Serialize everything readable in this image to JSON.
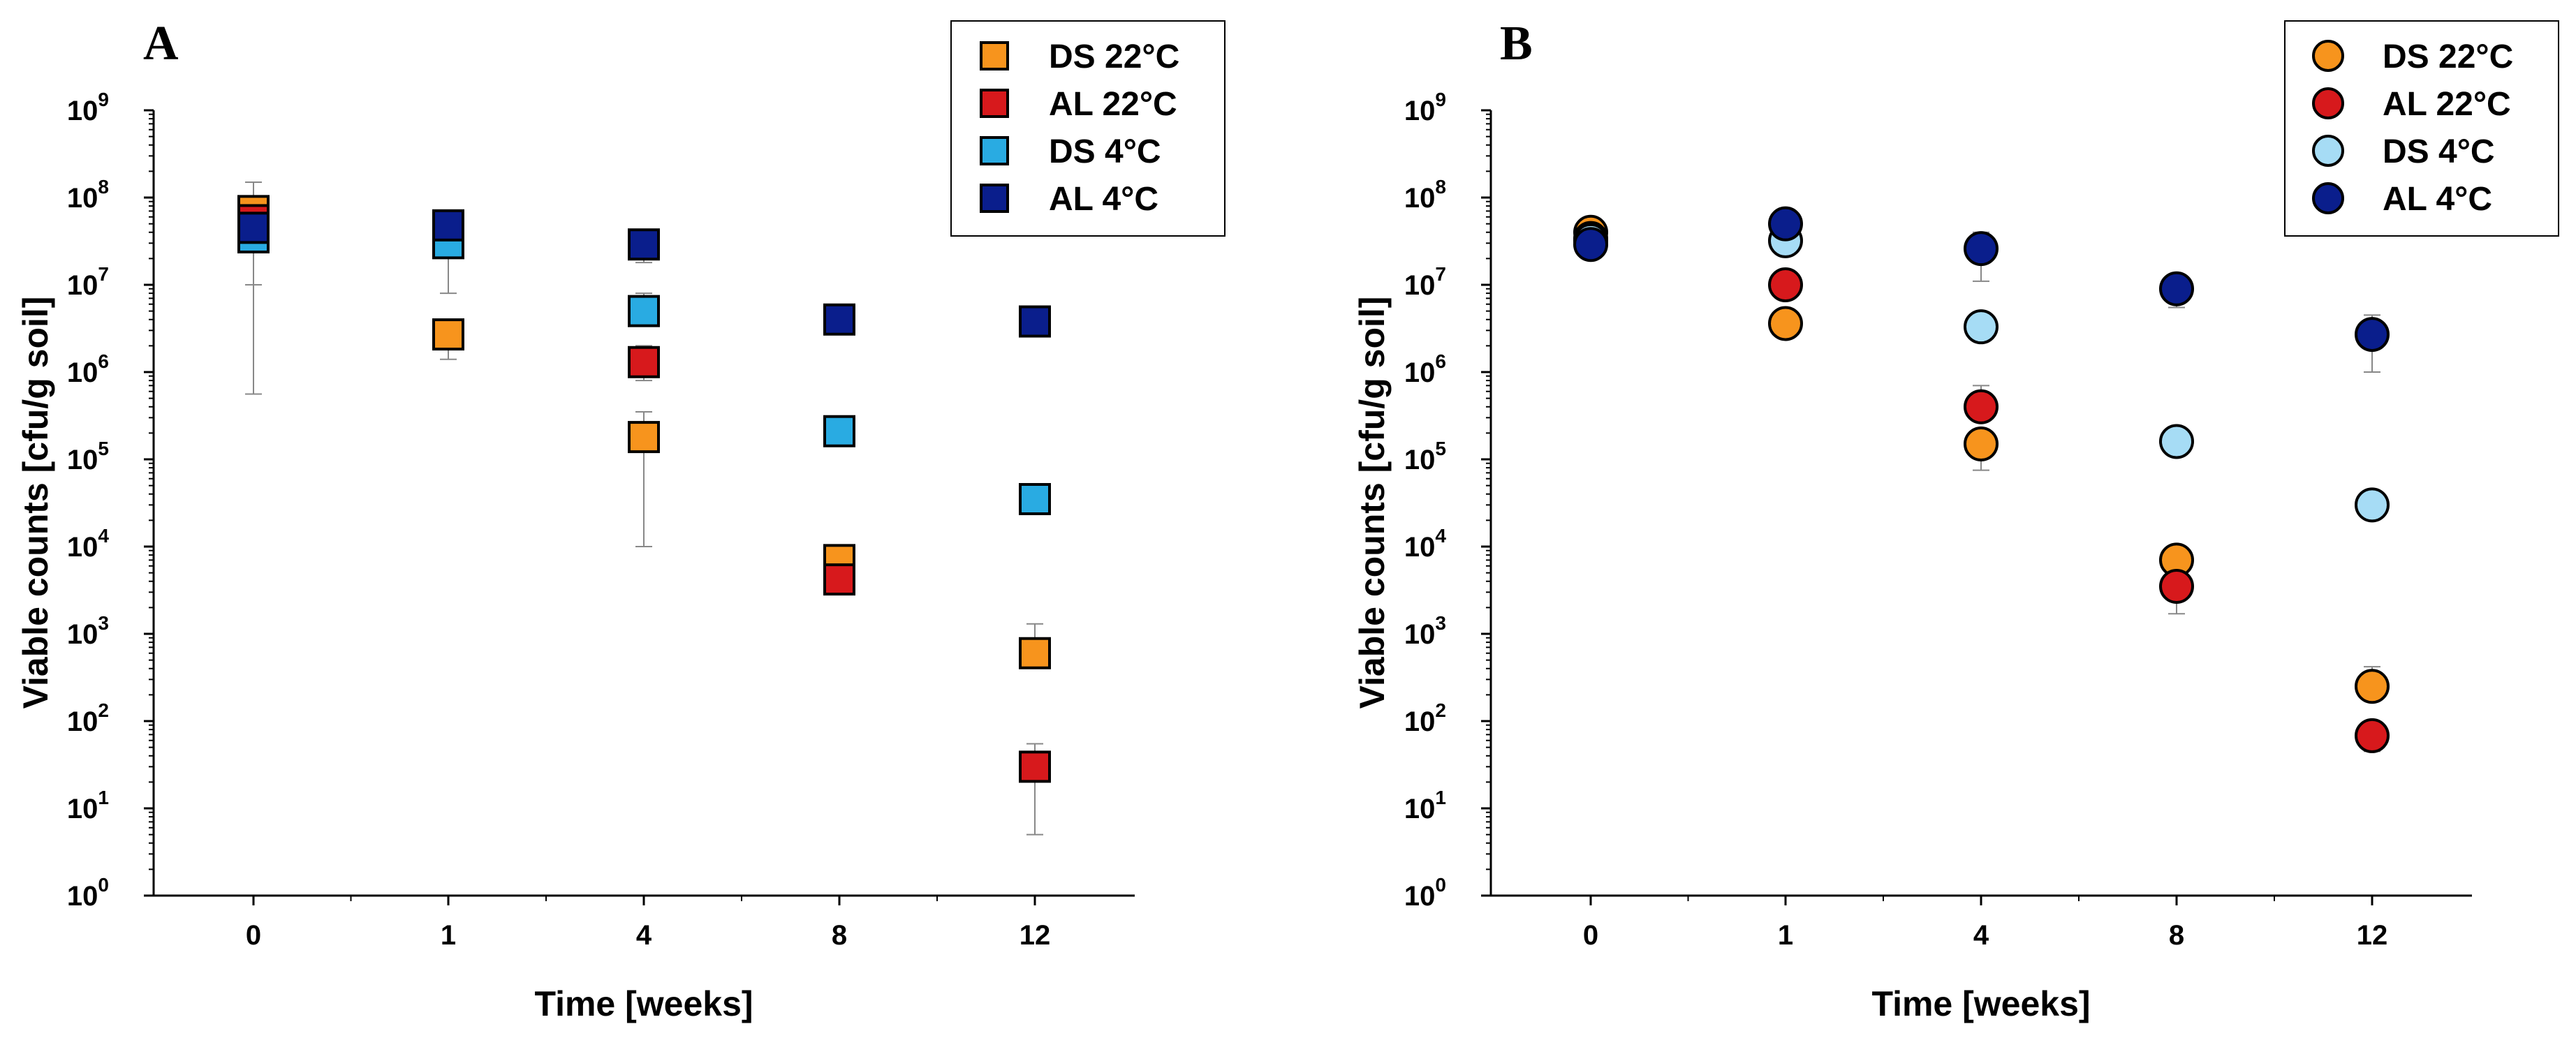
{
  "chart_data": [
    {
      "panel": "A",
      "type": "scatter",
      "marker": "square",
      "xlabel": "Time [weeks]",
      "ylabel": "Viable counts [cfu/g soil]",
      "yscale": "log",
      "ylim": [
        1,
        1000000000
      ],
      "categories": [
        "0",
        "1",
        "4",
        "8",
        "12"
      ],
      "y_ticks": [
        {
          "base": "10",
          "exp": "0"
        },
        {
          "base": "10",
          "exp": "1"
        },
        {
          "base": "10",
          "exp": "2"
        },
        {
          "base": "10",
          "exp": "3"
        },
        {
          "base": "10",
          "exp": "4"
        },
        {
          "base": "10",
          "exp": "5"
        },
        {
          "base": "10",
          "exp": "6"
        },
        {
          "base": "10",
          "exp": "7"
        },
        {
          "base": "10",
          "exp": "8"
        },
        {
          "base": "10",
          "exp": "9"
        }
      ],
      "legend_position": "top-right",
      "series": [
        {
          "name": "DS 22°C",
          "color": "#F7941D",
          "values": [
            70000000,
            2700000,
            180000,
            7000,
            600
          ],
          "err_low": [
            560000,
            1400000,
            10000,
            null,
            null
          ],
          "err_high": [
            150000000,
            4000000,
            350000,
            null,
            1300
          ]
        },
        {
          "name": "AL 22°C",
          "color": "#D7191C",
          "values": [
            55000000,
            null,
            1300000,
            4200,
            30
          ],
          "err_low": [
            null,
            null,
            800000,
            null,
            5
          ],
          "err_high": [
            null,
            null,
            2000000,
            null,
            55
          ]
        },
        {
          "name": "DS 4°C",
          "color": "#29ABE2",
          "values": [
            35000000,
            30000000,
            5000000,
            210000,
            35000
          ],
          "err_low": [
            null,
            null,
            null,
            null,
            null
          ],
          "err_high": [
            null,
            null,
            8000000,
            null,
            null
          ]
        },
        {
          "name": "AL 4°C",
          "color": "#0A1E8C",
          "values": [
            45000000,
            48000000,
            29000000,
            4000000,
            3800000
          ],
          "err_low": [
            10000000,
            8000000,
            18000000,
            null,
            2800000
          ],
          "err_high": [
            null,
            55000000,
            null,
            null,
            null
          ]
        }
      ]
    },
    {
      "panel": "B",
      "type": "scatter",
      "marker": "circle",
      "xlabel": "Time [weeks]",
      "ylabel": "Viable counts [cfu/g soil]",
      "yscale": "log",
      "ylim": [
        1,
        1000000000
      ],
      "categories": [
        "0",
        "1",
        "4",
        "8",
        "12"
      ],
      "y_ticks": [
        {
          "base": "10",
          "exp": "0"
        },
        {
          "base": "10",
          "exp": "1"
        },
        {
          "base": "10",
          "exp": "2"
        },
        {
          "base": "10",
          "exp": "3"
        },
        {
          "base": "10",
          "exp": "4"
        },
        {
          "base": "10",
          "exp": "5"
        },
        {
          "base": "10",
          "exp": "6"
        },
        {
          "base": "10",
          "exp": "7"
        },
        {
          "base": "10",
          "exp": "8"
        },
        {
          "base": "10",
          "exp": "9"
        }
      ],
      "legend_position": "top-right",
      "series": [
        {
          "name": "DS 22°C",
          "color": "#F7941D",
          "values": [
            40000000,
            3600000,
            150000,
            7000,
            250
          ],
          "err_low": [
            null,
            null,
            75000,
            null,
            null
          ],
          "err_high": [
            null,
            null,
            null,
            null,
            420
          ]
        },
        {
          "name": "AL 22°C",
          "color": "#D7191C",
          "values": [
            34000000,
            10000000,
            400000,
            3500,
            68
          ],
          "err_low": [
            null,
            null,
            null,
            1700,
            45
          ],
          "err_high": [
            null,
            null,
            700000,
            null,
            null
          ]
        },
        {
          "name": "DS 4°C",
          "color": "#A6DCF5",
          "values": [
            32000000,
            32000000,
            3300000,
            160000,
            30000
          ],
          "err_low": [
            null,
            null,
            null,
            110000,
            null
          ],
          "err_high": [
            null,
            null,
            null,
            null,
            null
          ]
        },
        {
          "name": "AL 4°C",
          "color": "#0A1E8C",
          "values": [
            29000000,
            50000000,
            26000000,
            9000000,
            2700000
          ],
          "err_low": [
            null,
            null,
            11000000,
            5500000,
            1000000
          ],
          "err_high": [
            null,
            null,
            40000000,
            null,
            4500000
          ]
        }
      ]
    }
  ]
}
